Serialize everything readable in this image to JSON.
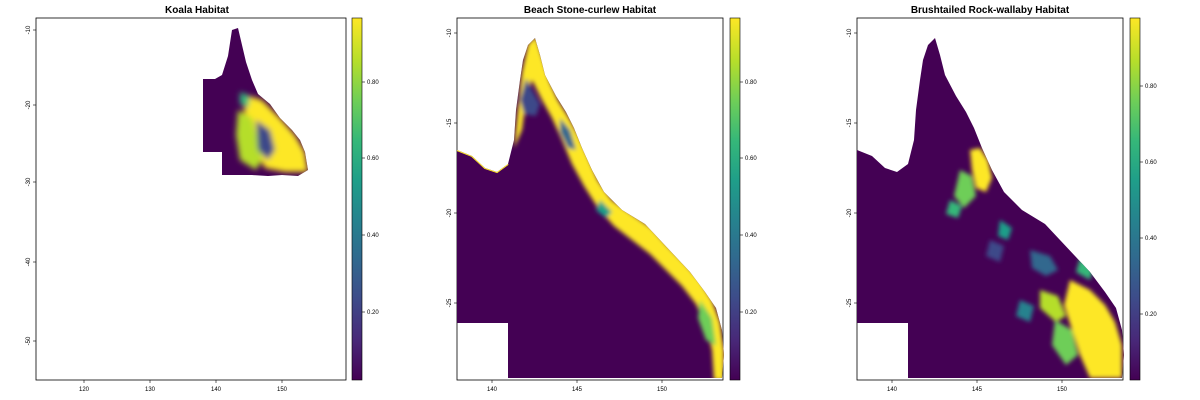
{
  "palette": [
    "#440154",
    "#482878",
    "#3e4a89",
    "#31688e",
    "#26828e",
    "#1f9e89",
    "#35b779",
    "#6ece58",
    "#b5de2b",
    "#fde725"
  ],
  "colors": {
    "background": "#ffffff",
    "low": "#440154",
    "high": "#fde725"
  },
  "panels": [
    {
      "title": "Koala Habitat",
      "x_ticks": [
        "120",
        "130",
        "140",
        "150"
      ],
      "y_ticks": [
        "-10",
        "-20",
        "-30",
        "-40",
        "-50"
      ],
      "legend_ticks": [
        "0.80",
        "0.60",
        "0.40",
        "0.20"
      ]
    },
    {
      "title": "Beach Stone-curlew Habitat",
      "x_ticks": [
        "140",
        "145",
        "150"
      ],
      "y_ticks": [
        "-10",
        "-15",
        "-20",
        "-25"
      ],
      "legend_ticks": [
        "0.80",
        "0.60",
        "0.40",
        "0.20"
      ]
    },
    {
      "title": "Brushtailed Rock-wallaby Habitat",
      "x_ticks": [
        "140",
        "145",
        "150"
      ],
      "y_ticks": [
        "-10",
        "-15",
        "-20",
        "-25"
      ],
      "legend_ticks": [
        "0.80",
        "0.60",
        "0.40",
        "0.20"
      ]
    }
  ]
}
